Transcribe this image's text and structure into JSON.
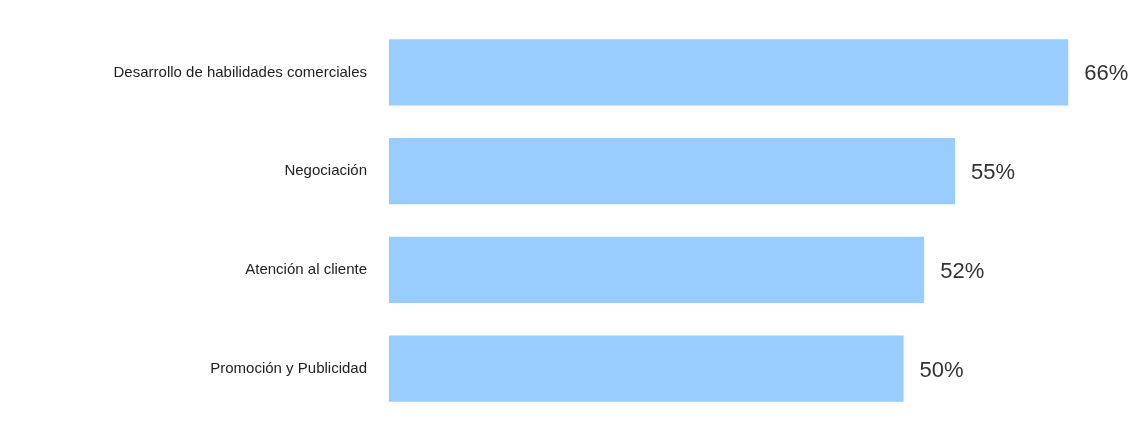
{
  "chart_data": {
    "type": "bar",
    "orientation": "horizontal",
    "categories": [
      "Desarrollo de habilidades comerciales",
      "Negociación",
      "Atención al cliente",
      "Promoción y Publicidad"
    ],
    "values": [
      66,
      55,
      52,
      50
    ],
    "value_labels": [
      "66%",
      "55%",
      "52%",
      "50%"
    ],
    "color": "#99ccff",
    "tick_labels": "y"
  }
}
